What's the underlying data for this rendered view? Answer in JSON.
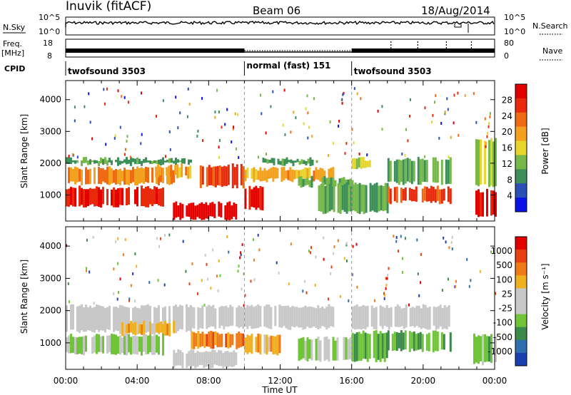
{
  "header": {
    "station": "Inuvik (fitACF)",
    "beam": "Beam 06",
    "date": "18/Aug/2014"
  },
  "strips": {
    "nsky_label": "N.Sky",
    "nsky_ticks": [
      "10^5",
      "10^0"
    ],
    "nsearch_label": "N.Search",
    "nsearch_ticks": [
      "10^5",
      "10^0"
    ],
    "freq_label_1": "Freq.",
    "freq_label_2": "[MHz]",
    "freq_ticks": [
      "18",
      "8"
    ],
    "nave_label": "Nave",
    "nave_ticks": [
      "80",
      "0"
    ],
    "cpid_label": "CPID",
    "cpid_segments": [
      {
        "label": "twofsound 3503",
        "start_hour": 0,
        "end_hour": 10
      },
      {
        "label": "normal (fast) 151",
        "start_hour": 10,
        "end_hour": 16
      },
      {
        "label": "twofsound 3503",
        "start_hour": 16,
        "end_hour": 24
      }
    ]
  },
  "colors": {
    "power_scale": [
      "#0a14e6",
      "#2a4fb5",
      "#3d8f5a",
      "#76b84a",
      "#e7d52c",
      "#f2a21e",
      "#ef6a12",
      "#e82a0a",
      "#e50000"
    ],
    "velocity_scale": [
      "#1c3fb0",
      "#2e6fae",
      "#3a8a4a",
      "#6fc43a",
      "#c8c8c8",
      "#c8c8c8",
      "#f0b020",
      "#ef7a18",
      "#e84010",
      "#e50000"
    ]
  },
  "chart_data": [
    {
      "type": "heatmap",
      "title": "Power",
      "xlabel": "Time UT",
      "ylabel": "Slant Range [km]",
      "xlim": [
        0,
        24
      ],
      "ylim": [
        180,
        4600
      ],
      "x_ticks": [
        "00:00",
        "04:00",
        "08:00",
        "12:00",
        "16:00",
        "20:00",
        "00:00"
      ],
      "x_tick_hours": [
        0,
        4,
        8,
        12,
        16,
        20,
        24
      ],
      "y_ticks": [
        1000,
        2000,
        3000,
        4000
      ],
      "colorbar": {
        "label": "Power [dB]",
        "ticks": [
          "28",
          "24",
          "20",
          "16",
          "12",
          "8",
          "4"
        ],
        "range": [
          0,
          30
        ]
      },
      "bands": [
        {
          "t0": 0,
          "t1": 5.5,
          "r0": 600,
          "r1": 1300,
          "value": 26
        },
        {
          "t0": 0,
          "t1": 6,
          "r0": 1300,
          "r1": 1900,
          "value": 20
        },
        {
          "t0": 0,
          "t1": 7,
          "r0": 1900,
          "r1": 2200,
          "value": 9
        },
        {
          "t0": 5,
          "t1": 7,
          "r0": 1500,
          "r1": 2000,
          "value": 18
        },
        {
          "t0": 6,
          "t1": 9.5,
          "r0": 200,
          "r1": 800,
          "value": 29
        },
        {
          "t0": 7.5,
          "t1": 10,
          "r0": 1200,
          "r1": 2000,
          "value": 24
        },
        {
          "t0": 10,
          "t1": 11,
          "r0": 500,
          "r1": 1300,
          "value": 27
        },
        {
          "t0": 10,
          "t1": 15,
          "r0": 1400,
          "r1": 1900,
          "value": 18
        },
        {
          "t0": 11,
          "t1": 14,
          "r0": 1900,
          "r1": 2200,
          "value": 9
        },
        {
          "t0": 13,
          "t1": 16,
          "r0": 1200,
          "r1": 1600,
          "value": 11
        },
        {
          "t0": 14,
          "t1": 18,
          "r0": 400,
          "r1": 1400,
          "value": 10
        },
        {
          "t0": 16,
          "t1": 17,
          "r0": 1800,
          "r1": 2200,
          "value": 14
        },
        {
          "t0": 18,
          "t1": 21.5,
          "r0": 700,
          "r1": 1300,
          "value": 25
        },
        {
          "t0": 18,
          "t1": 21.5,
          "r0": 1300,
          "r1": 2200,
          "value": 10
        },
        {
          "t0": 22.8,
          "t1": 24,
          "r0": 300,
          "r1": 1200,
          "value": 28
        },
        {
          "t0": 22.8,
          "t1": 24,
          "r0": 1200,
          "r1": 2800,
          "value": 12
        }
      ]
    },
    {
      "type": "heatmap",
      "title": "Velocity",
      "xlabel": "Time UT",
      "ylabel": "Slant Range [km]",
      "xlim": [
        0,
        24
      ],
      "ylim": [
        180,
        4600
      ],
      "x_ticks": [
        "00:00",
        "04:00",
        "08:00",
        "12:00",
        "16:00",
        "20:00",
        "00:00"
      ],
      "x_tick_hours": [
        0,
        4,
        8,
        12,
        16,
        20,
        24
      ],
      "y_ticks": [
        1000,
        2000,
        3000,
        4000
      ],
      "colorbar": {
        "label": "Velocity [m s⁻¹]",
        "ticks": [
          "1000",
          "500",
          "100",
          "25",
          "-25",
          "-100",
          "-500",
          "-1000"
        ]
      },
      "bands": [
        {
          "t0": 0,
          "t1": 5.5,
          "r0": 600,
          "r1": 1300,
          "value": -200
        },
        {
          "t0": 0,
          "t1": 7,
          "r0": 1300,
          "r1": 2200,
          "value": 0
        },
        {
          "t0": 3,
          "t1": 6,
          "r0": 1200,
          "r1": 1700,
          "value": 300
        },
        {
          "t0": 6,
          "t1": 9.5,
          "r0": 200,
          "r1": 800,
          "value": 0
        },
        {
          "t0": 7,
          "t1": 10,
          "r0": 800,
          "r1": 1400,
          "value": 500
        },
        {
          "t0": 7,
          "t1": 15,
          "r0": 1400,
          "r1": 2200,
          "value": 0
        },
        {
          "t0": 10,
          "t1": 12,
          "r0": 600,
          "r1": 1300,
          "value": 300
        },
        {
          "t0": 13,
          "t1": 16,
          "r0": 400,
          "r1": 1200,
          "value": -150
        },
        {
          "t0": 16,
          "t1": 18,
          "r0": 400,
          "r1": 1400,
          "value": -300
        },
        {
          "t0": 18,
          "t1": 21.5,
          "r0": 700,
          "r1": 1400,
          "value": -400
        },
        {
          "t0": 16,
          "t1": 21.5,
          "r0": 1400,
          "r1": 2200,
          "value": 0
        },
        {
          "t0": 22.8,
          "t1": 24,
          "r0": 300,
          "r1": 1300,
          "value": -300
        }
      ]
    }
  ]
}
